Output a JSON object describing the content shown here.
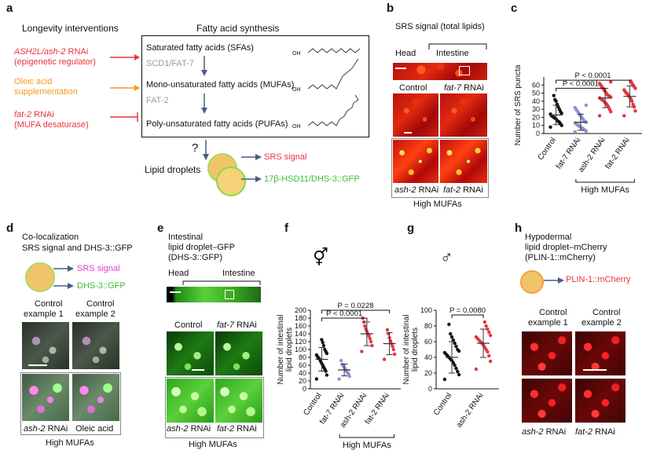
{
  "panels": {
    "a": "a",
    "b": "b",
    "c": "c",
    "d": "d",
    "e": "e",
    "f": "f",
    "g": "g",
    "h": "h"
  },
  "a": {
    "heading_left": "Longevity interventions",
    "heading_right": "Fatty acid synthesis",
    "ash2l_italic": "ASH2L/ash-2",
    "ash2l_suffix": " RNAi",
    "epigenetic": "(epigenetic regulator)",
    "oleic_1": "Oleic acid",
    "oleic_2": "supplementation",
    "fat2_italic": "fat-2",
    "fat2_suffix": " RNAi",
    "mufa_desat": "(MUFA desaturase)",
    "sfa": "Saturated fatty acids (SFAs)",
    "scd1": "SCD1/FAT-7",
    "mufa": "Mono-unsaturated fatty acids (MUFAs)",
    "fat2_enzyme": "FAT-2",
    "pufa": "Poly-unsaturated fatty acids (PUFAs)",
    "question": "?",
    "lipid_droplets": "Lipid droplets",
    "srs_signal": "SRS signal",
    "hsd": "17β-HSD11/DHS-3::GFP",
    "chem_label": "OH"
  },
  "b": {
    "title": "SRS signal (total lipids)",
    "head": "Head",
    "intestine": "Intestine",
    "control": "Control",
    "fat7": "fat-7",
    "rnai": " RNAi",
    "ash2": "ash-2",
    "fat2": "fat-2",
    "high_mufas": "High MUFAs"
  },
  "c": {
    "ylabel": "Number of SRS puncta",
    "yticks": [
      "0",
      "10",
      "20",
      "30",
      "40",
      "50",
      "60"
    ],
    "xlabels": [
      "Control",
      "fat-7 RNAi",
      "ash-2 RNAi",
      "fat-2 RNAi"
    ],
    "p1": "P < 0.0001",
    "p2": "P < 0.0001",
    "high_mufas": "High MUFAs"
  },
  "d": {
    "title_1": "Co-localization",
    "title_2": "SRS signal and DHS-3::GFP",
    "srs": "SRS signal",
    "dhs": "DHS-3::GFP",
    "ctrl1_a": "Control",
    "ctrl1_b": "example 1",
    "ctrl2_a": "Control",
    "ctrl2_b": "example 2",
    "ash2": "ash-2",
    "rnai": " RNAi",
    "oleic": "Oleic acid",
    "high_mufas": "High MUFAs"
  },
  "e": {
    "title_1": "Intestinal",
    "title_2": "lipid droplet–GFP",
    "title_3": "(DHS-3::GFP)",
    "head": "Head",
    "intestine": "Intestine",
    "control": "Control",
    "fat7": "fat-7",
    "rnai": " RNAi",
    "ash2": "ash-2",
    "fat2": "fat-2",
    "high_mufas": "High MUFAs"
  },
  "f": {
    "sex_symbol": "⚥",
    "ylabel_1": "Number of intestinal",
    "ylabel_2": "lipid droplets",
    "yticks": [
      "0",
      "20",
      "40",
      "60",
      "80",
      "100",
      "120",
      "140",
      "160",
      "180",
      "200"
    ],
    "xlabels": [
      "Control",
      "fat-7 RNAi",
      "ash-2 RNAi",
      "fat-2 RNAi"
    ],
    "p1": "P = 0.0228",
    "p2": "P < 0.0001",
    "high_mufas": "High MUFAs"
  },
  "g": {
    "sex_symbol": "♂",
    "ylabel_1": "Number of intestinal",
    "ylabel_2": "lipid droplets",
    "yticks": [
      "0",
      "20",
      "40",
      "60",
      "80",
      "100"
    ],
    "xlabels": [
      "Control",
      "ash-2 RNAi"
    ],
    "p1": "P = 0.0080"
  },
  "h": {
    "title_1": "Hypodermal",
    "title_2": "lipid droplet–mCherry",
    "title_3": "(PLIN-1::mCherry)",
    "plin": "PLIN-1::mCherry",
    "ctrl1_a": "Control",
    "ctrl1_b": "example 1",
    "ctrl2_a": "Control",
    "ctrl2_b": "example 2",
    "ash2": "ash-2",
    "fat2": "fat-2",
    "rnai": " RNAi"
  },
  "colors": {
    "red": "#e8343c",
    "orange": "#f39a1e",
    "green": "#3bbf3b",
    "magenta": "#e23bd6",
    "black_dots": "#111111",
    "blue_dots": "#8f8fd6",
    "red_dots": "#e8343c",
    "arrow_blue": "#4a5a8a"
  },
  "chart_data": [
    {
      "type": "scatter",
      "panel": "c",
      "ylabel": "Number of SRS puncta",
      "ylim": [
        0,
        70
      ],
      "categories": [
        "Control",
        "fat-7 RNAi",
        "ash-2 RNAi",
        "fat-2 RNAi"
      ],
      "series": [
        {
          "name": "Control",
          "mean": 23,
          "sd": 12,
          "values": [
            8,
            10,
            12,
            14,
            15,
            16,
            18,
            19,
            20,
            21,
            22,
            24,
            25,
            27,
            30,
            33,
            36,
            40,
            42,
            47
          ]
        },
        {
          "name": "fat-7 RNAi",
          "mean": 14,
          "sd": 10,
          "values": [
            2,
            3,
            4,
            5,
            6,
            7,
            8,
            9,
            10,
            11,
            12,
            13,
            14,
            15,
            16,
            18,
            20,
            22,
            24,
            26,
            28,
            30,
            32,
            35
          ]
        },
        {
          "name": "ash-2 RNAi",
          "mean": 44,
          "sd": 12,
          "values": [
            22,
            27,
            30,
            33,
            35,
            37,
            38,
            40,
            41,
            42,
            43,
            44,
            45,
            46,
            47,
            48,
            50,
            52,
            54,
            56,
            58,
            60,
            62,
            64
          ]
        },
        {
          "name": "fat-2 RNAi",
          "mean": 46,
          "sd": 13,
          "values": [
            22,
            28,
            33,
            36,
            40,
            43,
            45,
            47,
            49,
            50,
            52,
            54,
            56,
            58,
            60,
            62,
            65
          ]
        }
      ],
      "annotations": [
        "P < 0.0001",
        "P < 0.0001"
      ]
    },
    {
      "type": "scatter",
      "panel": "f",
      "ylabel": "Number of intestinal lipid droplets",
      "ylim": [
        0,
        200
      ],
      "categories": [
        "Control",
        "fat-7 RNAi",
        "ash-2 RNAi",
        "fat-2 RNAi"
      ],
      "series": [
        {
          "name": "Control",
          "mean": 75,
          "sd": 30,
          "values": [
            25,
            35,
            45,
            50,
            55,
            60,
            65,
            70,
            75,
            78,
            82,
            86,
            90,
            95,
            100,
            110,
            118,
            125
          ]
        },
        {
          "name": "fat-7 RNAi",
          "mean": 48,
          "sd": 15,
          "values": [
            25,
            32,
            38,
            42,
            46,
            50,
            54,
            58,
            62,
            72
          ]
        },
        {
          "name": "ash-2 RNAi",
          "mean": 140,
          "sd": 30,
          "values": [
            95,
            110,
            120,
            128,
            135,
            140,
            146,
            152,
            160,
            170,
            180
          ]
        },
        {
          "name": "fat-2 RNAi",
          "mean": 115,
          "sd": 28,
          "values": [
            75,
            88,
            100,
            108,
            115,
            122,
            130,
            140,
            150
          ]
        }
      ],
      "annotations": [
        "P = 0.0228",
        "P < 0.0001"
      ]
    },
    {
      "type": "scatter",
      "panel": "g",
      "ylabel": "Number of intestinal lipid droplets",
      "ylim": [
        0,
        100
      ],
      "categories": [
        "Control",
        "ash-2 RNAi"
      ],
      "series": [
        {
          "name": "Control",
          "mean": 40,
          "sd": 20,
          "values": [
            12,
            18,
            22,
            26,
            30,
            33,
            36,
            38,
            40,
            42,
            44,
            46,
            48,
            50,
            54,
            58,
            62,
            66,
            70,
            82
          ]
        },
        {
          "name": "ash-2 RNAi",
          "mean": 58,
          "sd": 18,
          "values": [
            25,
            35,
            42,
            47,
            50,
            53,
            56,
            58,
            60,
            62,
            64,
            66,
            68,
            72,
            76,
            80,
            85
          ]
        }
      ],
      "annotations": [
        "P = 0.0080"
      ]
    }
  ]
}
